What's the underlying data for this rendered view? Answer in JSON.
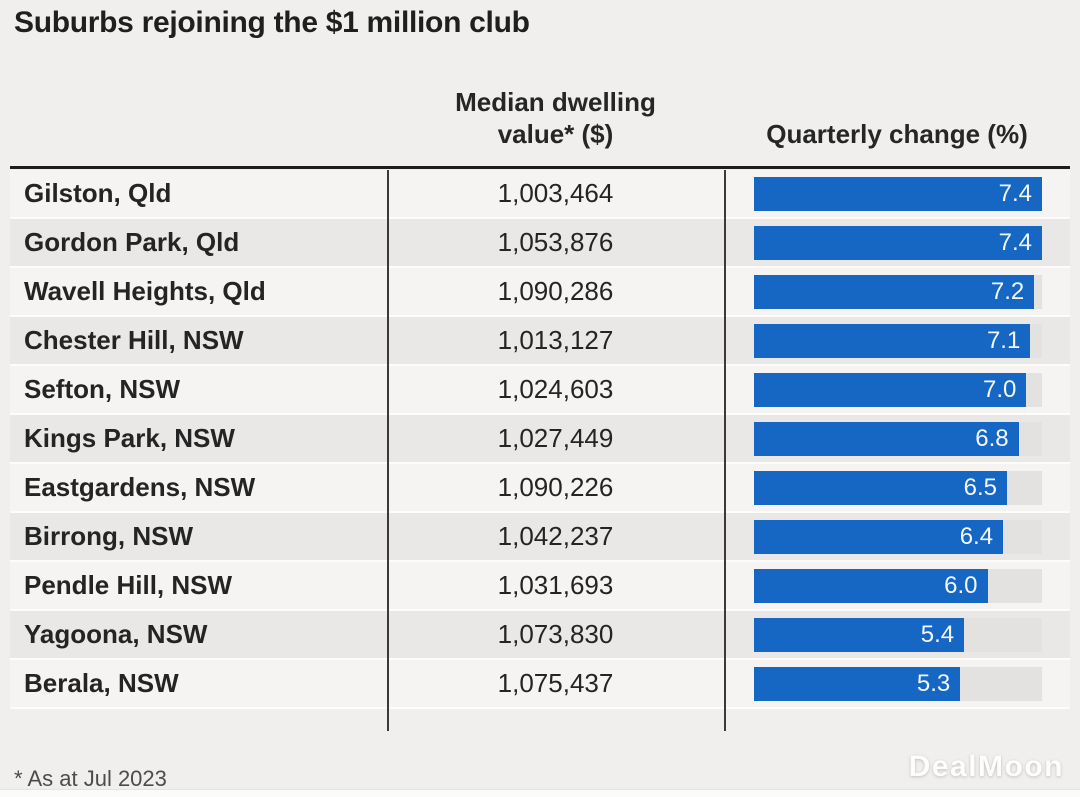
{
  "title": "Suburbs rejoining the $1 million club",
  "headers": {
    "value_line1": "Median dwelling",
    "value_line2": "value* ($)",
    "change": "Quarterly change (%)"
  },
  "footnote": "* As at Jul 2023",
  "watermark": "DealMoon",
  "colors": {
    "bar_blue": "#1666c3",
    "bar_track": "#e3e2e0",
    "row_light": "#f5f4f2",
    "row_dark": "#e9e8e6",
    "page_bg": "#f0efed",
    "text_dark": "#242424"
  },
  "bar_max": 7.4,
  "rows": [
    {
      "suburb": "Gilston, Qld",
      "value": "1,003,464",
      "change": "7.4"
    },
    {
      "suburb": "Gordon Park, Qld",
      "value": "1,053,876",
      "change": "7.4"
    },
    {
      "suburb": "Wavell Heights, Qld",
      "value": "1,090,286",
      "change": "7.2"
    },
    {
      "suburb": "Chester Hill, NSW",
      "value": "1,013,127",
      "change": "7.1"
    },
    {
      "suburb": "Sefton, NSW",
      "value": "1,024,603",
      "change": "7.0"
    },
    {
      "suburb": "Kings Park, NSW",
      "value": "1,027,449",
      "change": "6.8"
    },
    {
      "suburb": "Eastgardens, NSW",
      "value": "1,090,226",
      "change": "6.5"
    },
    {
      "suburb": "Birrong, NSW",
      "value": "1,042,237",
      "change": "6.4"
    },
    {
      "suburb": "Pendle Hill, NSW",
      "value": "1,031,693",
      "change": "6.0"
    },
    {
      "suburb": "Yagoona, NSW",
      "value": "1,073,830",
      "change": "5.4"
    },
    {
      "suburb": "Berala, NSW",
      "value": "1,075,437",
      "change": "5.3"
    }
  ],
  "chart_data": {
    "type": "bar",
    "title": "Suburbs rejoining the $1 million club",
    "orientation": "horizontal",
    "categories": [
      "Gilston, Qld",
      "Gordon Park, Qld",
      "Wavell Heights, Qld",
      "Chester Hill, NSW",
      "Sefton, NSW",
      "Kings Park, NSW",
      "Eastgardens, NSW",
      "Birrong, NSW",
      "Pendle Hill, NSW",
      "Yagoona, NSW",
      "Berala, NSW"
    ],
    "series": [
      {
        "name": "Median dwelling value* ($)",
        "values": [
          1003464,
          1053876,
          1090286,
          1013127,
          1024603,
          1027449,
          1090226,
          1042237,
          1031693,
          1073830,
          1075437
        ]
      },
      {
        "name": "Quarterly change (%)",
        "values": [
          7.4,
          7.4,
          7.2,
          7.1,
          7.0,
          6.8,
          6.5,
          6.4,
          6.0,
          5.4,
          5.3
        ]
      }
    ],
    "xlabel": "Quarterly change (%)",
    "ylabel": "",
    "xlim": [
      0,
      7.4
    ],
    "grid": false,
    "legend_position": "none",
    "data_labels": true,
    "footnote": "* As at Jul 2023"
  }
}
